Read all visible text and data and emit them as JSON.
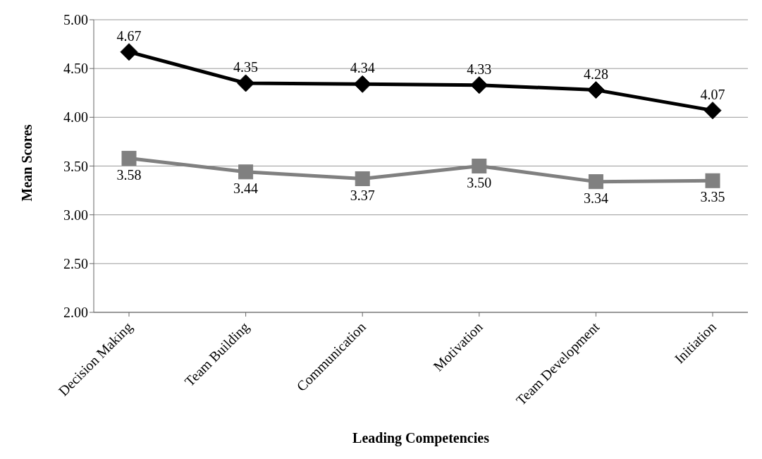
{
  "chart_data": {
    "type": "line",
    "xlabel": "Leading Competencies",
    "ylabel": "Mean Scores",
    "categories": [
      "Decision Making",
      "Team Building",
      "Communication",
      "Motivation",
      "Team Development",
      "Initiation"
    ],
    "series": [
      {
        "color": "#000000",
        "marker": "diamond",
        "values": [
          4.67,
          4.35,
          4.34,
          4.33,
          4.28,
          4.07
        ],
        "value_labels": [
          "4.67",
          "4.35",
          "4.34",
          "4.33",
          "4.28",
          "4.07"
        ]
      },
      {
        "color": "#808080",
        "marker": "square",
        "values": [
          3.58,
          3.44,
          3.37,
          3.5,
          3.34,
          3.35
        ],
        "value_labels": [
          "3.58",
          "3.44",
          "3.37",
          "3.50",
          "3.34",
          "3.35"
        ]
      }
    ],
    "ylim": [
      2,
      5
    ],
    "yticks": [
      {
        "value": 2,
        "label": "2.00"
      },
      {
        "value": 2.5,
        "label": "2.50"
      },
      {
        "value": 3,
        "label": "3.00"
      },
      {
        "value": 3.5,
        "label": "3.50"
      },
      {
        "value": 4,
        "label": "4.00"
      },
      {
        "value": 4.5,
        "label": "4.50"
      },
      {
        "value": 5,
        "label": "5.00"
      }
    ],
    "grid": "y",
    "line_style": "solid",
    "legend": false
  }
}
